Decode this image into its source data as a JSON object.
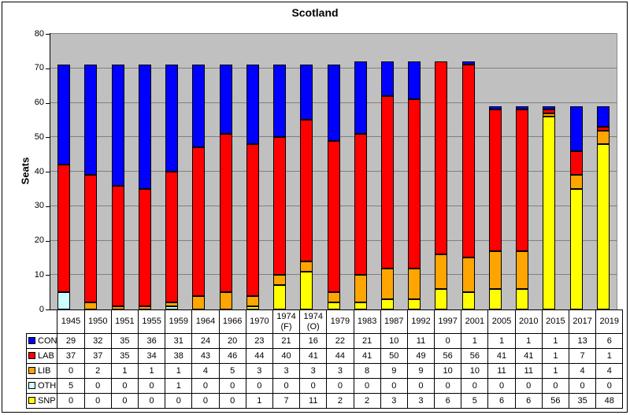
{
  "window": {
    "title": "Scotland"
  },
  "y_axis": {
    "label": "Seats"
  },
  "chart_data": {
    "type": "bar",
    "stacked": true,
    "title": "Scotland",
    "xlabel": "",
    "ylabel": "Seats",
    "ylim": [
      0,
      80
    ],
    "y_tick_step": 10,
    "grid": true,
    "plot_bg_color": "#C0C0C0",
    "gridline_color": "#808080",
    "data_table_shown": true,
    "legend_position": "data-table-left",
    "stack_order_bottom_to_top": [
      "SNP",
      "OTH",
      "LIB",
      "LAB",
      "CON"
    ],
    "categories": [
      "1945",
      "1950",
      "1951",
      "1955",
      "1959",
      "1964",
      "1966",
      "1970",
      "1974 (F)",
      "1974 (O)",
      "1979",
      "1983",
      "1987",
      "1992",
      "1997",
      "2001",
      "2005",
      "2010",
      "2015",
      "2017",
      "2019"
    ],
    "series": [
      {
        "name": "CON",
        "color": "#0000FF",
        "values": [
          29,
          32,
          35,
          36,
          31,
          24,
          20,
          23,
          21,
          16,
          22,
          21,
          10,
          11,
          0,
          1,
          1,
          1,
          1,
          13,
          6
        ]
      },
      {
        "name": "LAB",
        "color": "#FF0000",
        "values": [
          37,
          37,
          35,
          34,
          38,
          43,
          46,
          44,
          40,
          41,
          44,
          41,
          50,
          49,
          56,
          56,
          41,
          41,
          1,
          7,
          1
        ]
      },
      {
        "name": "LIB",
        "color": "#FFA500",
        "values": [
          0,
          2,
          1,
          1,
          1,
          4,
          5,
          3,
          3,
          3,
          3,
          8,
          9,
          9,
          10,
          10,
          11,
          11,
          1,
          4,
          4
        ]
      },
      {
        "name": "OTH",
        "color": "#CCFFFF",
        "values": [
          5,
          0,
          0,
          0,
          1,
          0,
          0,
          0,
          0,
          0,
          0,
          0,
          0,
          0,
          0,
          0,
          0,
          0,
          0,
          0,
          0
        ]
      },
      {
        "name": "SNP",
        "color": "#FFFF00",
        "values": [
          0,
          0,
          0,
          0,
          0,
          0,
          0,
          1,
          7,
          11,
          2,
          2,
          3,
          3,
          6,
          5,
          6,
          6,
          56,
          35,
          48
        ]
      }
    ]
  }
}
